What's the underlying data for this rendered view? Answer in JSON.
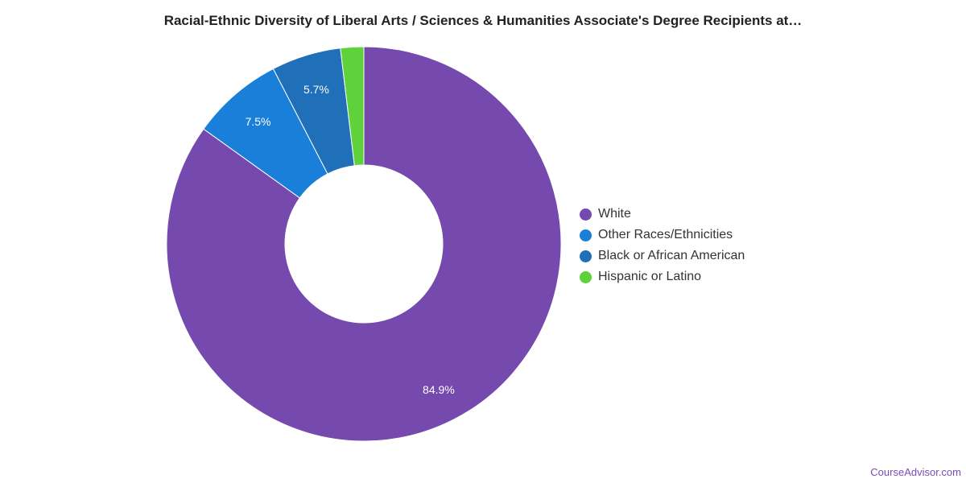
{
  "chart_data": {
    "type": "pie",
    "title": "Racial-Ethnic Diversity of Liberal Arts / Sciences & Humanities Associate's Degree Recipients at…",
    "donut": true,
    "legend_position": "right",
    "slices": [
      {
        "name": "White",
        "value": 84.9,
        "label": "84.9%",
        "color": "#7549ae"
      },
      {
        "name": "Other Races/Ethnicities",
        "value": 7.5,
        "label": "7.5%",
        "color": "#1a7fd8"
      },
      {
        "name": "Black or African American",
        "value": 5.7,
        "label": "5.7%",
        "color": "#1f6fb9"
      },
      {
        "name": "Hispanic or Latino",
        "value": 1.9,
        "label": "",
        "color": "#5ed23a"
      }
    ]
  },
  "watermark": "CourseAdvisor.com"
}
